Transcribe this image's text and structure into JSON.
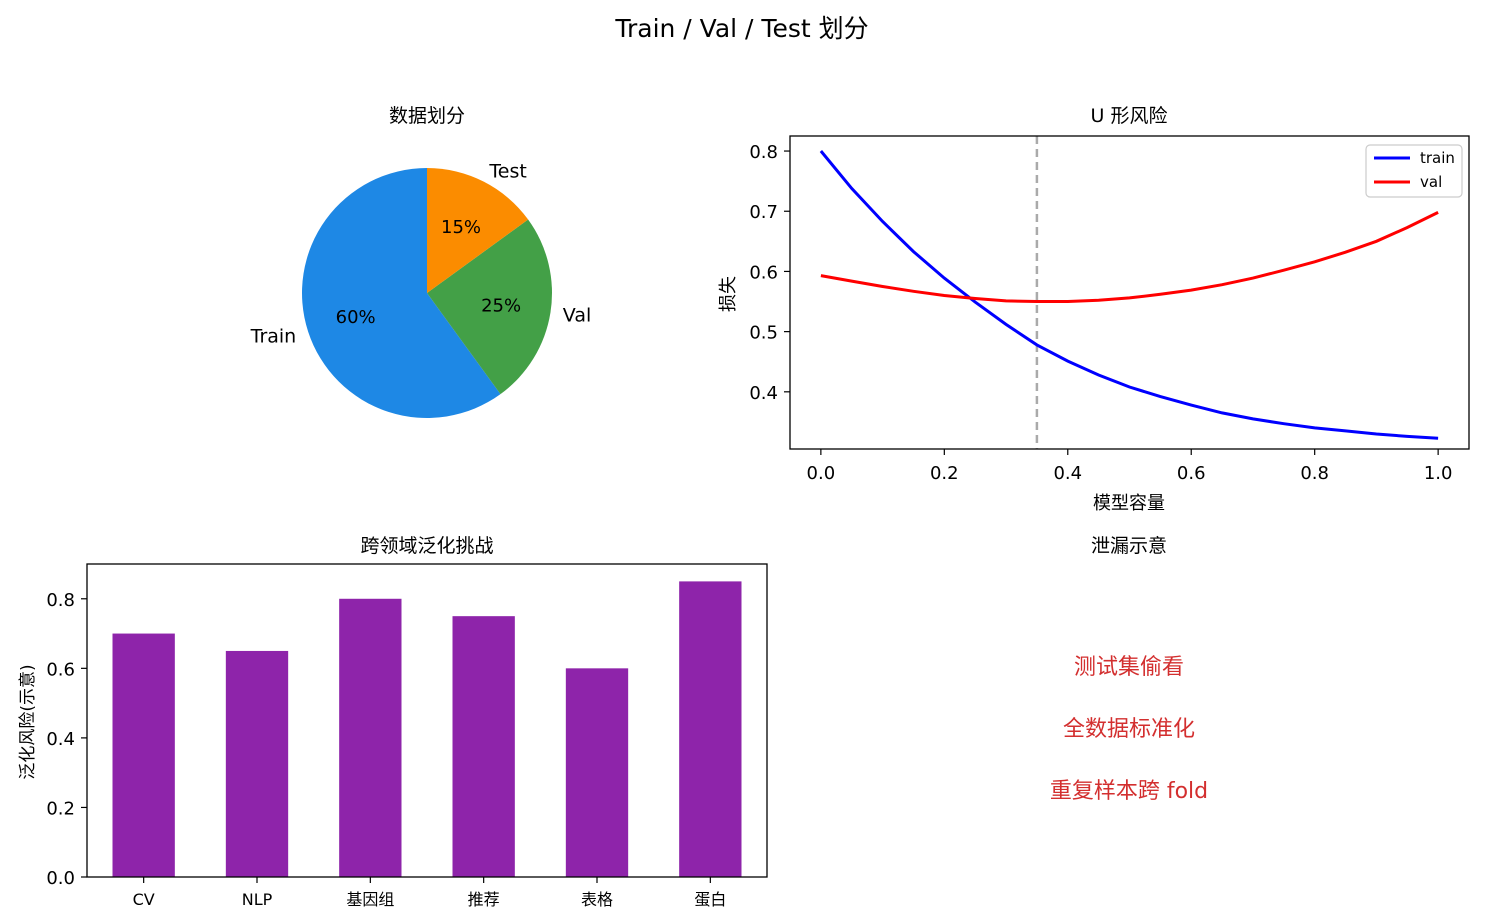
{
  "suptitle": "Train / Val / Test 划分",
  "chart_data": [
    {
      "type": "pie",
      "title": "数据划分",
      "labels": [
        "Train",
        "Val",
        "Test"
      ],
      "values": [
        60,
        25,
        15
      ],
      "pct_labels": [
        "60%",
        "25%",
        "15%"
      ],
      "colors": [
        "#1e88e5",
        "#43a047",
        "#fb8c00"
      ],
      "startangle": 90
    },
    {
      "type": "line",
      "title": "U 形风险",
      "xlabel": "模型容量",
      "ylabel": "损失",
      "xlim": [
        -0.05,
        1.05
      ],
      "ylim": [
        0.305,
        0.825
      ],
      "xticks": [
        "0.0",
        "0.2",
        "0.4",
        "0.6",
        "0.8",
        "1.0"
      ],
      "yticks": [
        "0.4",
        "0.5",
        "0.6",
        "0.7",
        "0.8"
      ],
      "vline": 0.35,
      "vline_color": "#aaaaaa",
      "legend": "top-right",
      "series": [
        {
          "name": "train",
          "color": "#0000ff",
          "x": [
            0.0,
            0.05,
            0.1,
            0.15,
            0.2,
            0.25,
            0.3,
            0.35,
            0.4,
            0.45,
            0.5,
            0.55,
            0.6,
            0.65,
            0.7,
            0.75,
            0.8,
            0.85,
            0.9,
            0.95,
            1.0
          ],
          "y": [
            0.8,
            0.738,
            0.683,
            0.633,
            0.589,
            0.549,
            0.512,
            0.478,
            0.451,
            0.428,
            0.408,
            0.392,
            0.378,
            0.365,
            0.355,
            0.347,
            0.34,
            0.335,
            0.33,
            0.326,
            0.323
          ]
        },
        {
          "name": "val",
          "color": "#ff0000",
          "x": [
            0.0,
            0.05,
            0.1,
            0.15,
            0.2,
            0.25,
            0.3,
            0.35,
            0.4,
            0.45,
            0.5,
            0.55,
            0.6,
            0.65,
            0.7,
            0.75,
            0.8,
            0.85,
            0.9,
            0.95,
            1.0
          ],
          "y": [
            0.593,
            0.584,
            0.575,
            0.567,
            0.56,
            0.555,
            0.551,
            0.55,
            0.55,
            0.552,
            0.556,
            0.562,
            0.569,
            0.578,
            0.589,
            0.602,
            0.616,
            0.632,
            0.65,
            0.673,
            0.698
          ]
        }
      ]
    },
    {
      "type": "bar",
      "title": "跨领域泛化挑战",
      "ylabel": "泛化风险(示意)",
      "categories": [
        "CV",
        "NLP",
        "基因组",
        "推荐",
        "表格",
        "蛋白"
      ],
      "values": [
        0.7,
        0.65,
        0.8,
        0.75,
        0.6,
        0.85
      ],
      "color": "#8e24aa",
      "ylim": [
        0,
        0.9
      ],
      "yticks": [
        "0.0",
        "0.2",
        "0.4",
        "0.6",
        "0.8"
      ]
    }
  ],
  "text_panel": {
    "title": "泄漏示意",
    "lines": [
      "测试集偷看",
      "全数据标准化",
      "重复样本跨 fold"
    ],
    "color": "#d32f2f"
  }
}
